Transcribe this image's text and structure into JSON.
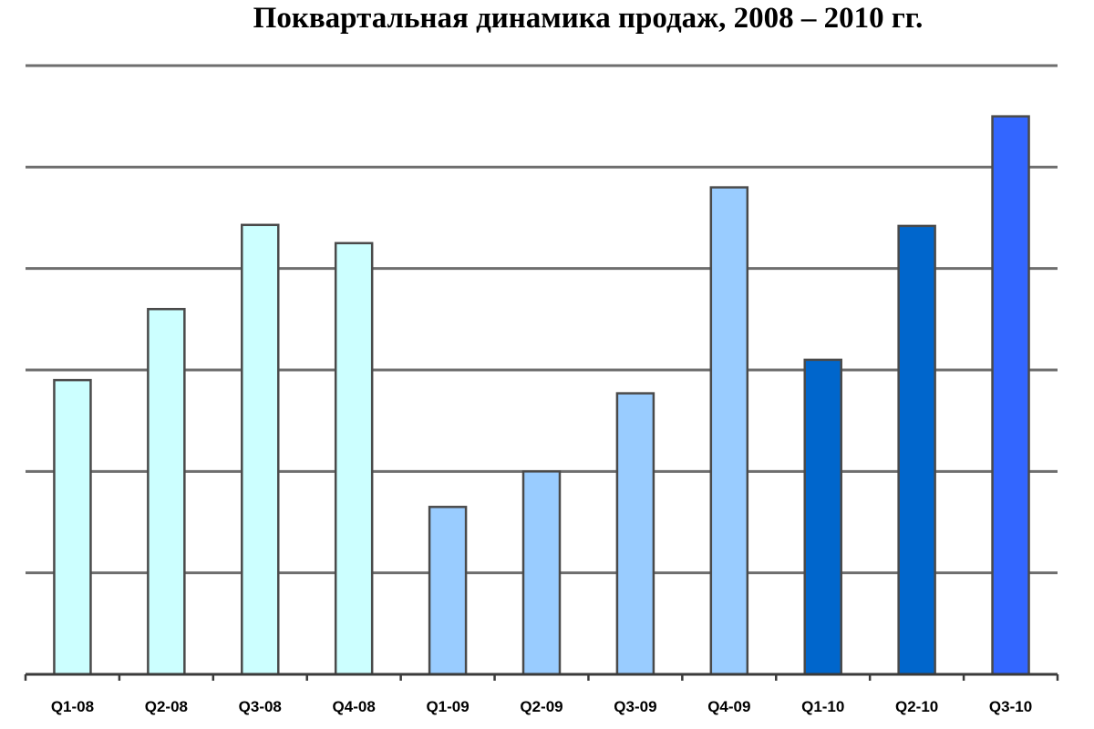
{
  "chart_data": {
    "type": "bar",
    "title": "Поквартальная динамика продаж, 2008 – 2010 гг.",
    "xlabel": "",
    "ylabel": "",
    "categories": [
      "Q1-08",
      "Q2-08",
      "Q3-08",
      "Q4-08",
      "Q1-09",
      "Q2-09",
      "Q3-09",
      "Q4-09",
      "Q1-10",
      "Q2-10",
      "Q3-10"
    ],
    "values": [
      2.9,
      3.6,
      4.43,
      4.25,
      1.65,
      2.0,
      2.77,
      4.8,
      3.1,
      4.42,
      5.5
    ],
    "bar_colors": [
      "#ccffff",
      "#ccffff",
      "#ccffff",
      "#ccffff",
      "#99ccff",
      "#99ccff",
      "#99ccff",
      "#99ccff",
      "#0066cc",
      "#0066cc",
      "#3366ff"
    ],
    "ylim": [
      0,
      6
    ],
    "gridlines": [
      1,
      2,
      3,
      4,
      5,
      6
    ],
    "grid": true,
    "legend": "none"
  }
}
